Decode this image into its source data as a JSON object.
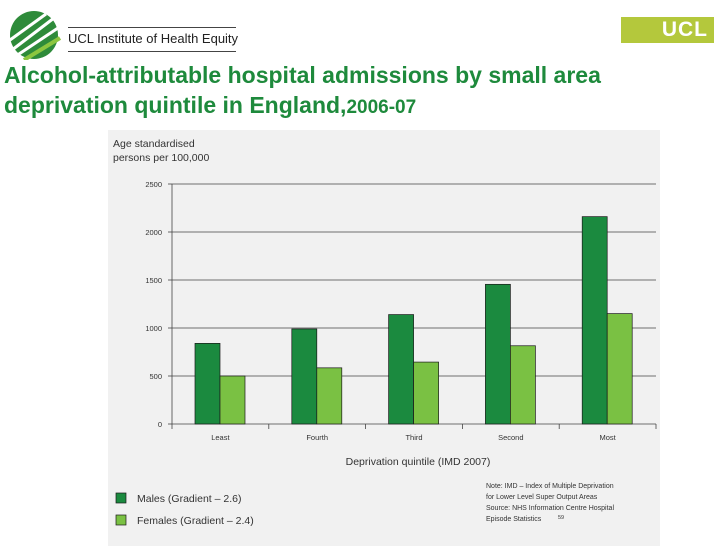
{
  "header": {
    "org_name": "UCL Institute of Health Equity",
    "ucl_logo_text": "UCL",
    "title_main": "Alcohol-attributable hospital admissions by small area deprivation quintile in England,",
    "title_years": "2006-07"
  },
  "chart_data": {
    "type": "bar",
    "ylabel_lines": [
      "Age standardised",
      "persons per 100,000"
    ],
    "xlabel": "Deprivation quintile (IMD 2007)",
    "categories": [
      "Least",
      "Fourth",
      "Third",
      "Second",
      "Most"
    ],
    "ylim": [
      0,
      2500
    ],
    "yticks": [
      0,
      500,
      1000,
      1500,
      2000,
      2500
    ],
    "series": [
      {
        "name": "Males (Gradient – 2.6)",
        "color": "#1b8a3f",
        "values": [
          840,
          990,
          1140,
          1455,
          2160
        ]
      },
      {
        "name": "Females (Gradient – 2.4)",
        "color": "#7ac143",
        "values": [
          500,
          585,
          645,
          815,
          1150
        ]
      }
    ],
    "note_lines": [
      "Note: IMD – Index of Multiple Deprivation",
      "for Lower Level Super Output Areas",
      "Source: NHS Information Centre Hospital",
      "Episode Statistics"
    ],
    "note_superscript": "59"
  }
}
